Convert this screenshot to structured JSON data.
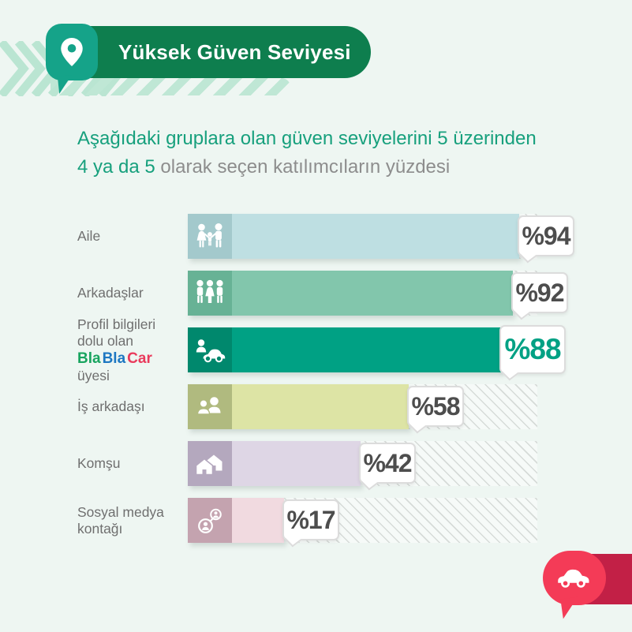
{
  "header": {
    "title": "Yüksek Güven Seviyesi",
    "pill_color": "#0e7e4e",
    "badge_color": "#15a389",
    "pin_icon": "map-pin"
  },
  "subtitle": {
    "line1": "Aşağıdaki gruplara olan güven seviyelerini 5 üzerinden",
    "line2_highlight": "4 ya da 5",
    "line2_rest": " olarak seçen katılımcıların yüzdesi",
    "highlight_color": "#17a07d",
    "rest_color": "#8d8d8d"
  },
  "chart_data": {
    "type": "bar",
    "orientation": "horizontal",
    "title": "Yüksek Güven Seviyesi",
    "subtitle": "Aşağıdaki gruplara olan güven seviyelerini 5 üzerinden 4 ya da 5 olarak seçen katılımcıların yüzdesi",
    "unit": "percent",
    "xlim": [
      0,
      100
    ],
    "grid": false,
    "legend": false,
    "categories": [
      "Aile",
      "Arkadaşlar",
      "Profil bilgileri dolu olan BlaBlaCar üyesi",
      "İş arkadaşı",
      "Komşu",
      "Sosyal medya kontağı"
    ],
    "values": [
      94,
      92,
      88,
      58,
      42,
      17
    ],
    "value_labels": [
      "%94",
      "%92",
      "%88",
      "%58",
      "%42",
      "%17"
    ],
    "highlighted_index": 2
  },
  "chart_rows": [
    {
      "label": "Aile",
      "icon": "family-icon",
      "value": 94,
      "value_label": "%94",
      "fill_color": "#bedfe2",
      "icon_color": "#a3c9cc",
      "value_color": "#4d4d4d",
      "emphasis": false
    },
    {
      "label": "Arkadaşlar",
      "icon": "friends-icon",
      "value": 92,
      "value_label": "%92",
      "fill_color": "#82c6ac",
      "icon_color": "#67b295",
      "value_color": "#4d4d4d",
      "emphasis": false
    },
    {
      "label_top": "Profil bilgileri dolu olan",
      "label_bottom": "üyesi",
      "brand": [
        {
          "text": "Bla",
          "color": "#18a45f"
        },
        {
          "text": "Bla",
          "color": "#1d77c2"
        },
        {
          "text": "Car",
          "color": "#e93a5c"
        }
      ],
      "icon": "member-car-icon",
      "value": 88,
      "value_label": "%88",
      "fill_color": "#00a184",
      "icon_color": "#00886d",
      "value_color": "#00a184",
      "emphasis": true
    },
    {
      "label": "İş arkadaşı",
      "icon": "colleagues-icon",
      "value": 58,
      "value_label": "%58",
      "fill_color": "#dde4a5",
      "icon_color": "#b0ba7f",
      "value_color": "#4d4d4d",
      "emphasis": false
    },
    {
      "label": "Komşu",
      "icon": "houses-icon",
      "value": 42,
      "value_label": "%42",
      "fill_color": "#ded6e5",
      "icon_color": "#b4a8be",
      "value_color": "#4d4d4d",
      "emphasis": false
    },
    {
      "label": "Sosyal medya kontağı",
      "icon": "social-contact-icon",
      "value": 17,
      "value_label": "%17",
      "fill_color": "#f1dae0",
      "icon_color": "#c4a3af",
      "value_color": "#4d4d4d",
      "emphasis": false
    }
  ],
  "logo": {
    "name": "BlaBlaCar",
    "icon": "car-speech-bubble-icon",
    "bubble_color": "#f43b57",
    "band_color": "#c22046"
  }
}
